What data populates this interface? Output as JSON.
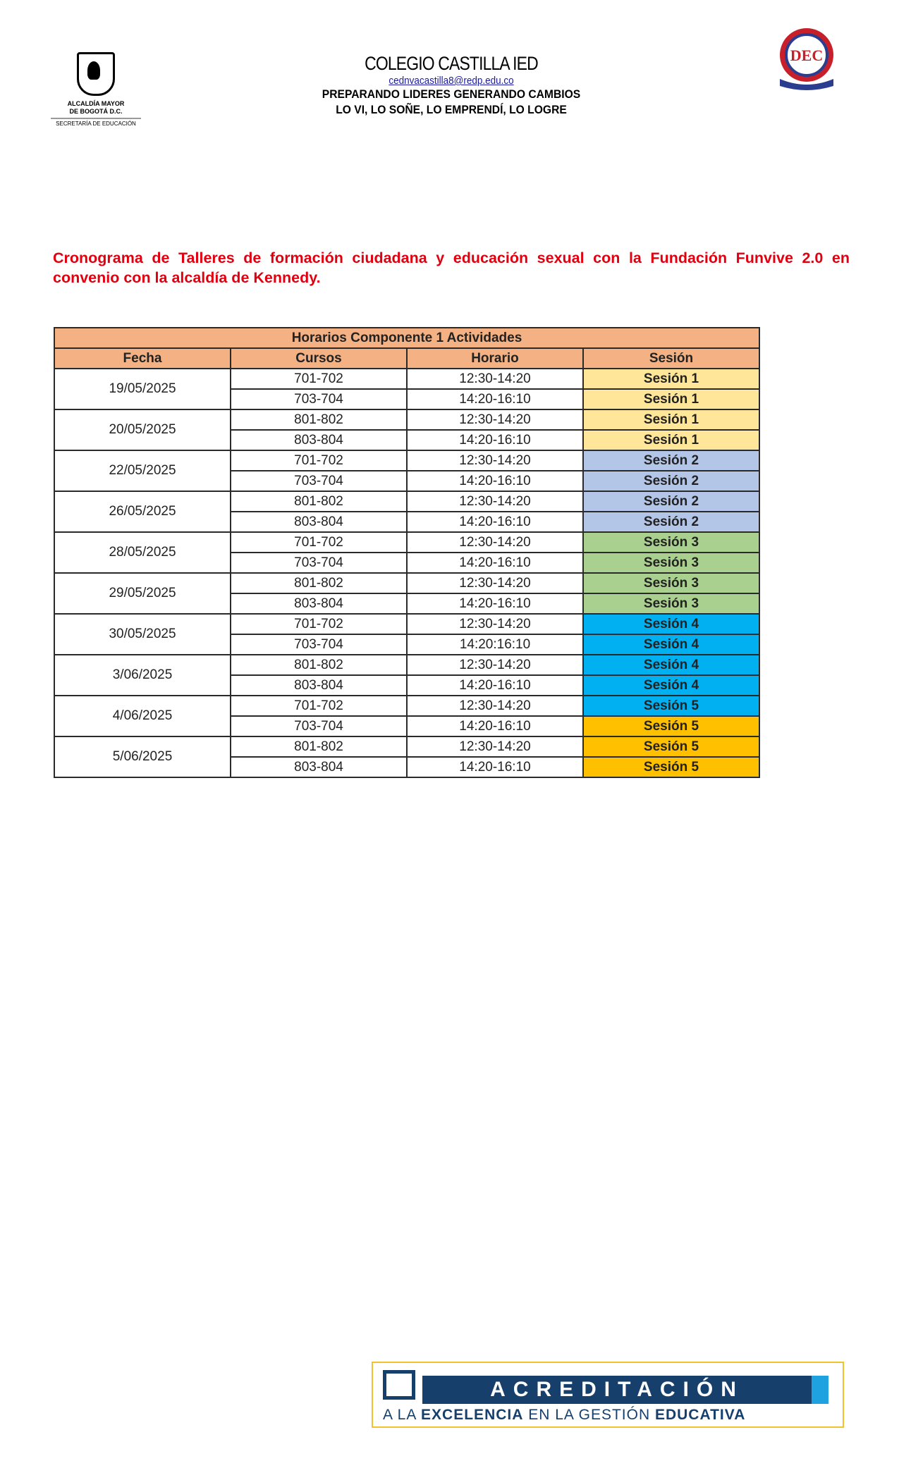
{
  "header": {
    "left_logo": {
      "line1": "ALCALDÍA MAYOR",
      "line2": "DE BOGOTÁ D.C.",
      "line3": "SECRETARÍA DE EDUCACIÓN"
    },
    "school_name": "COLEGIO CASTILLA IED",
    "email": "cednvacastilla8@redp.edu.co",
    "motto1": "PREPARANDO LIDERES GENERANDO CAMBIOS",
    "motto2": "LO VI, LO SOÑE, LO EMPRENDÍ, LO LOGRE",
    "right_logo_letters": "DEC"
  },
  "title": "Cronograma de Talleres de formación ciudadana y educación sexual con la Fundación Funvive 2.0 en convenio con la alcaldía de Kennedy.",
  "table": {
    "caption": "Horarios Componente 1 Actividades",
    "columns": [
      "Fecha",
      "Cursos",
      "Horario",
      "Sesión"
    ],
    "header_color": "#f4b183",
    "groups": [
      {
        "date": "19/05/2025",
        "rows": [
          [
            "701-702",
            "12:30-14:20",
            "Sesión 1",
            "#ffe699"
          ],
          [
            "703-704",
            "14:20-16:10",
            "Sesión 1",
            "#ffe699"
          ]
        ]
      },
      {
        "date": "20/05/2025",
        "rows": [
          [
            "801-802",
            "12:30-14:20",
            "Sesión 1",
            "#ffe699"
          ],
          [
            "803-804",
            "14:20-16:10",
            "Sesión 1",
            "#ffe699"
          ]
        ]
      },
      {
        "date": "22/05/2025",
        "rows": [
          [
            "701-702",
            "12:30-14:20",
            "Sesión 2",
            "#b4c6e7"
          ],
          [
            "703-704",
            "14:20-16:10",
            "Sesión 2",
            "#b4c6e7"
          ]
        ]
      },
      {
        "date": "26/05/2025",
        "rows": [
          [
            "801-802",
            "12:30-14:20",
            "Sesión 2",
            "#b4c6e7"
          ],
          [
            "803-804",
            "14:20-16:10",
            "Sesión 2",
            "#b4c6e7"
          ]
        ]
      },
      {
        "date": "28/05/2025",
        "rows": [
          [
            "701-702",
            "12:30-14:20",
            "Sesión 3",
            "#a9d08e"
          ],
          [
            "703-704",
            "14:20-16:10",
            "Sesión 3",
            "#a9d08e"
          ]
        ]
      },
      {
        "date": "29/05/2025",
        "rows": [
          [
            "801-802",
            "12:30-14:20",
            "Sesión 3",
            "#a9d08e"
          ],
          [
            "803-804",
            "14:20-16:10",
            "Sesión 3",
            "#a9d08e"
          ]
        ]
      },
      {
        "date": "30/05/2025",
        "rows": [
          [
            "701-702",
            "12:30-14:20",
            "Sesión 4",
            "#00b0f0"
          ],
          [
            "703-704",
            "14:20:16:10",
            "Sesión 4",
            "#00b0f0"
          ]
        ]
      },
      {
        "date": "3/06/2025",
        "rows": [
          [
            "801-802",
            "12:30-14:20",
            "Sesión 4",
            "#00b0f0"
          ],
          [
            "803-804",
            "14:20-16:10",
            "Sesión 4",
            "#00b0f0"
          ]
        ]
      },
      {
        "date": "4/06/2025",
        "rows": [
          [
            "701-702",
            "12:30-14:20",
            "Sesión 5",
            "#00b0f0"
          ],
          [
            "703-704",
            "14:20-16:10",
            "Sesión 5",
            "#ffc000"
          ]
        ]
      },
      {
        "date": "5/06/2025",
        "rows": [
          [
            "801-802",
            "12:30-14:20",
            "Sesión 5",
            "#ffc000"
          ],
          [
            "803-804",
            "14:20-16:10",
            "Sesión 5",
            "#ffc000"
          ]
        ]
      }
    ]
  },
  "footer_badge": {
    "title": "ACREDITACIÓN",
    "subtitle_parts": [
      "A LA ",
      "EXCELENCIA",
      " EN LA GESTIÓN ",
      "EDUCATIVA"
    ]
  }
}
